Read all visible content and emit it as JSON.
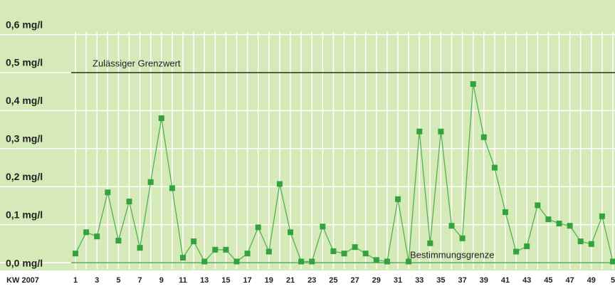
{
  "chart_data": {
    "type": "line",
    "x_label": "KW 2007",
    "categories": [
      "1",
      null,
      "3",
      null,
      "5",
      null,
      "7",
      null,
      "9",
      null,
      "11",
      null,
      "13",
      null,
      "15",
      null,
      "17",
      null,
      "19",
      null,
      "21",
      null,
      "23",
      null,
      "25",
      null,
      "27",
      null,
      "29",
      null,
      "31",
      null,
      "33",
      null,
      "35",
      null,
      "37",
      null,
      "39",
      null,
      "41",
      null,
      "43",
      null,
      "45",
      null,
      "47",
      null,
      "49",
      null,
      "5"
    ],
    "series": [
      {
        "name": null,
        "color": "#33a23f",
        "values": [
          0.024,
          0.08,
          0.069,
          0.185,
          0.058,
          0.161,
          0.039,
          0.212,
          0.38,
          0.196,
          0.013,
          0.056,
          0.003,
          0.034,
          0.034,
          0.003,
          0.024,
          0.093,
          0.029,
          0.207,
          0.08,
          0.003,
          0.003,
          0.095,
          0.03,
          0.024,
          0.041,
          0.024,
          0.007,
          0.003,
          0.167,
          0.003,
          0.345,
          0.051,
          0.345,
          0.097,
          0.064,
          0.47,
          0.33,
          0.25,
          0.133,
          0.029,
          0.043,
          0.151,
          0.114,
          0.103,
          0.097,
          0.056,
          0.049,
          0.122,
          0.003
        ]
      }
    ],
    "ylim": [
      0,
      0.6
    ],
    "yticks": [
      {
        "value": 0,
        "label": "0,0 mg/l"
      },
      {
        "value": 0.1,
        "label": "0,1 mg/l"
      },
      {
        "value": 0.2,
        "label": "0,2 mg/l"
      },
      {
        "value": 0.3,
        "label": "0,3 mg/l"
      },
      {
        "value": 0.4,
        "label": "0,4 mg/l"
      },
      {
        "value": 0.5,
        "label": "0,5 mg/l"
      },
      {
        "value": 0.6,
        "label": "0,6 mg/l"
      }
    ],
    "reference_lines": [
      {
        "value": 0.5,
        "label": "Zulässiger Grenzwert",
        "color": "#000000"
      },
      {
        "value": 0,
        "label": "Bestimmungsgrenze",
        "color": "#3a9a3a"
      }
    ],
    "grid": true
  }
}
